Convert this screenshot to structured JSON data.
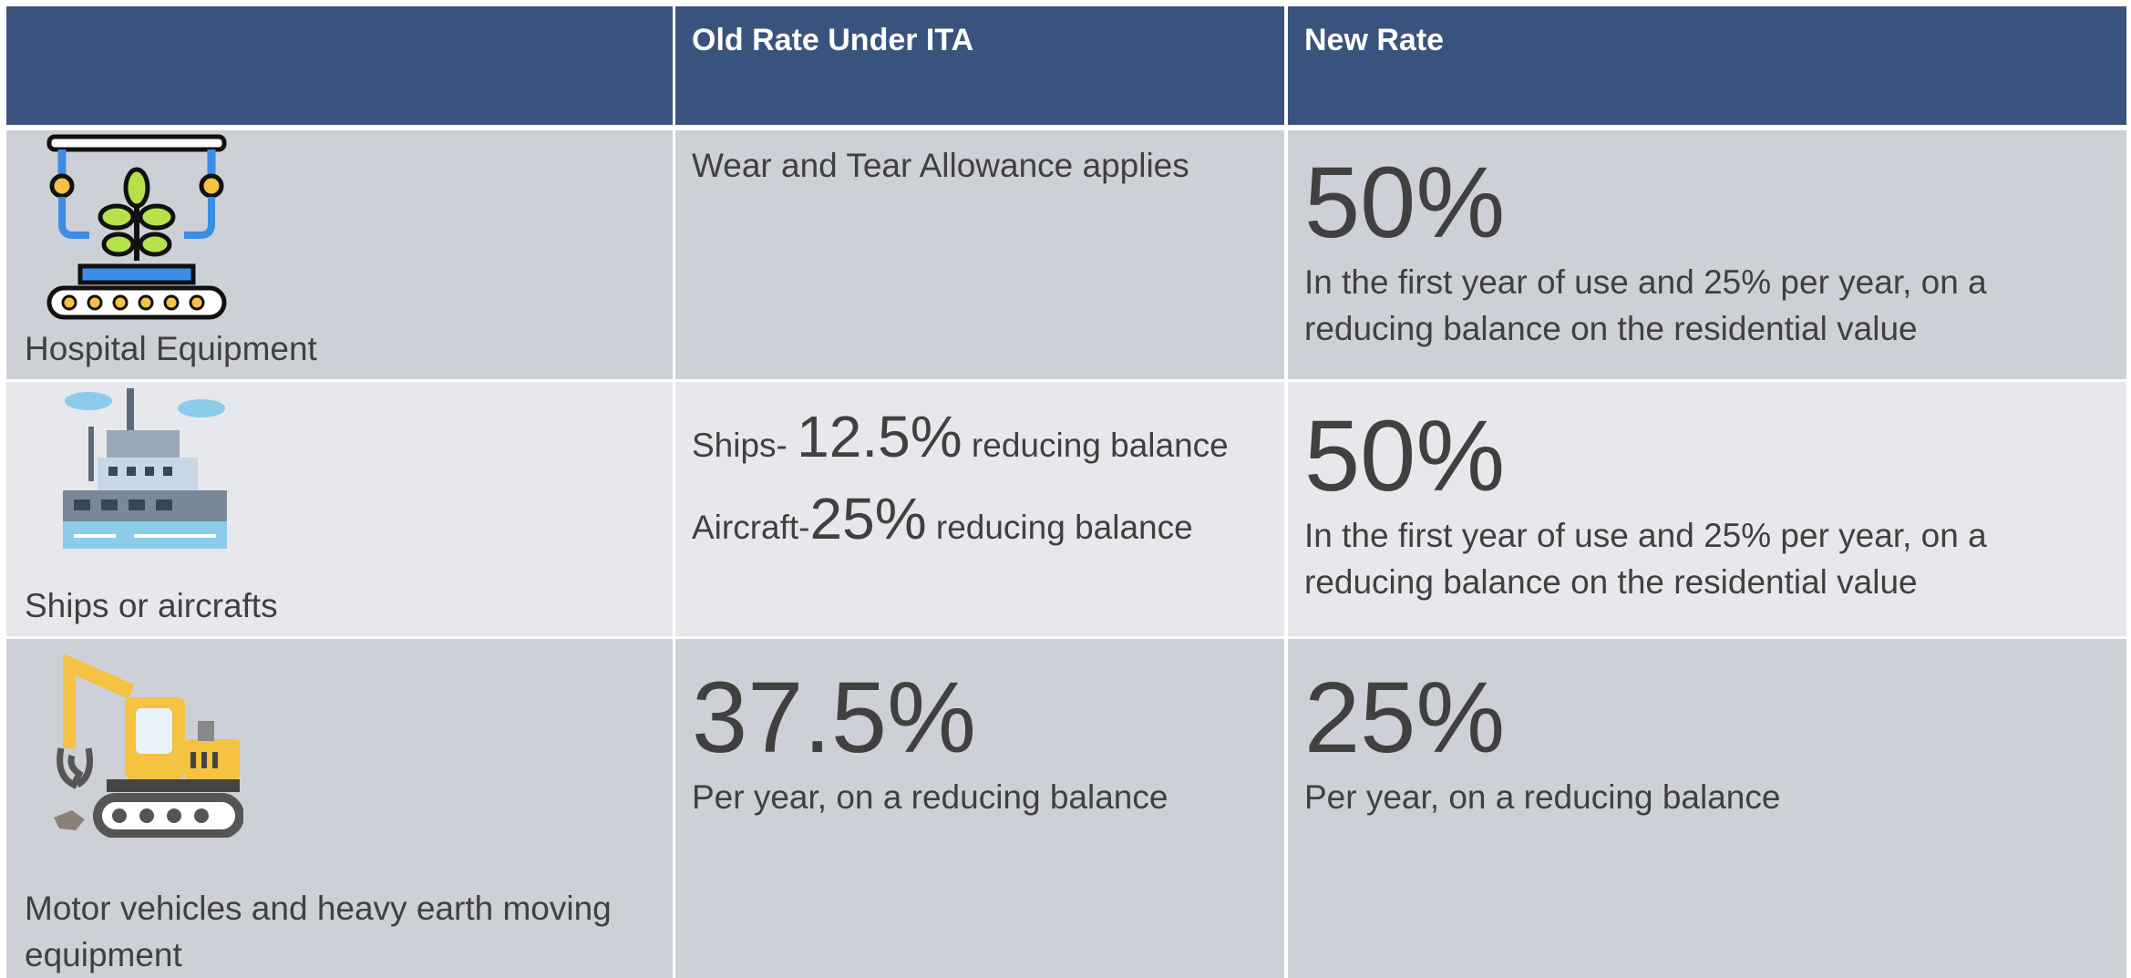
{
  "table": {
    "header": {
      "columns": [
        "Old Rate Under ITA",
        "New Rate"
      ]
    },
    "rows": [
      {
        "item": "Hospital Equipment",
        "old": {
          "text": "Wear and Tear Allowance applies"
        },
        "new": {
          "rate": "50%",
          "note": "In the first year of use and 25% per year, on a reducing balance on the residential value"
        }
      },
      {
        "item": "Ships or aircrafts",
        "old": {
          "lines": [
            {
              "label": "Ships-",
              "rate": "12.5%",
              "suffix": "reducing balance"
            },
            {
              "label": "Aircraft-",
              "rate": "25%",
              "suffix": "reducing balance"
            }
          ]
        },
        "new": {
          "rate": "50%",
          "note": "In the first year of use and 25% per year, on a reducing balance on the residential value"
        }
      },
      {
        "item": "Motor vehicles and heavy earth moving equipment",
        "old": {
          "rate": "37.5%",
          "note": "Per year, on a reducing balance"
        },
        "new": {
          "rate": "25%",
          "note": "Per year, on a reducing balance"
        }
      }
    ]
  }
}
